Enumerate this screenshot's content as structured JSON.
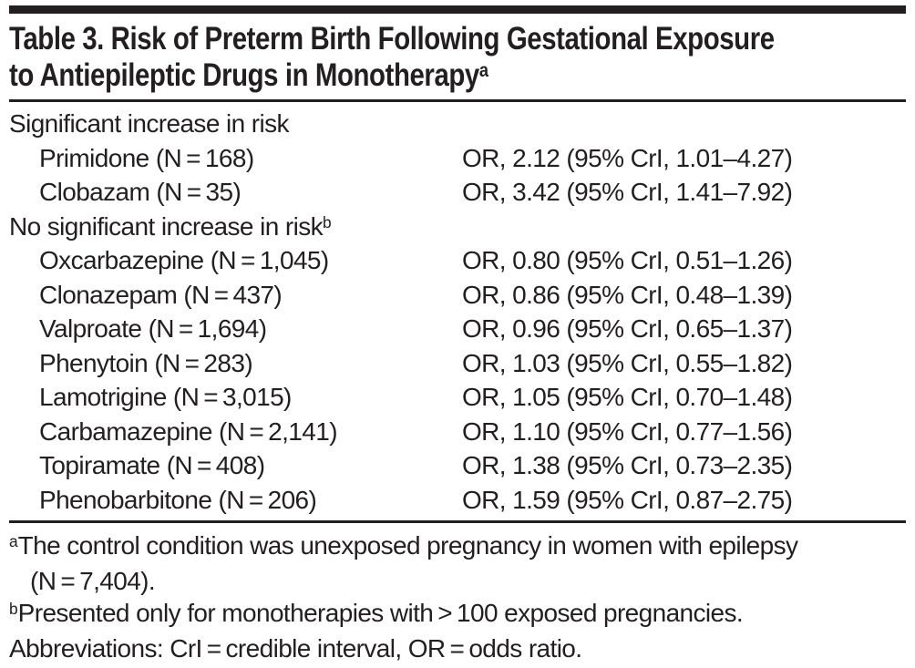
{
  "colors": {
    "text": "#231f20",
    "rule": "#231f20",
    "background": "#ffffff"
  },
  "title": {
    "line1": "Table 3. Risk of Preterm Birth Following Gestational Exposure",
    "line2": "to Antiepileptic Drugs in Monotherapy",
    "sup": "a"
  },
  "table": {
    "sections": [
      {
        "header": "Significant increase in risk",
        "sup": "",
        "rows": [
          {
            "drug": "Primidone (N = 168)",
            "value": "OR, 2.12 (95% CrI, 1.01–4.27)"
          },
          {
            "drug": "Clobazam (N = 35)",
            "value": "OR, 3.42 (95% CrI, 1.41–7.92)"
          }
        ]
      },
      {
        "header": "No significant increase in risk",
        "sup": "b",
        "rows": [
          {
            "drug": "Oxcarbazepine (N = 1,045)",
            "value": "OR, 0.80 (95% CrI, 0.51–1.26)"
          },
          {
            "drug": "Clonazepam (N = 437)",
            "value": "OR, 0.86 (95% CrI, 0.48–1.39)"
          },
          {
            "drug": "Valproate (N = 1,694)",
            "value": "OR, 0.96 (95% CrI, 0.65–1.37)"
          },
          {
            "drug": "Phenytoin (N = 283)",
            "value": "OR, 1.03 (95% CrI, 0.55–1.82)"
          },
          {
            "drug": "Lamotrigine (N = 3,015)",
            "value": "OR, 1.05 (95% CrI, 0.70–1.48)"
          },
          {
            "drug": "Carbamazepine (N = 2,141)",
            "value": "OR, 1.10 (95% CrI, 0.77–1.56)"
          },
          {
            "drug": "Topiramate (N = 408)",
            "value": "OR, 1.38 (95% CrI, 0.73–2.35)"
          },
          {
            "drug": "Phenobarbitone (N = 206)",
            "value": "OR, 1.59 (95% CrI, 0.87–2.75)"
          }
        ]
      }
    ]
  },
  "footnotes": [
    {
      "marker": "a",
      "lines": [
        "The control condition was unexposed pregnancy in women with epilepsy",
        "(N = 7,404)."
      ]
    },
    {
      "marker": "b",
      "lines": [
        "Presented only for monotherapies with > 100 exposed pregnancies."
      ]
    },
    {
      "lines": [
        "Abbreviations: CrI = credible interval, OR = odds ratio."
      ]
    }
  ]
}
